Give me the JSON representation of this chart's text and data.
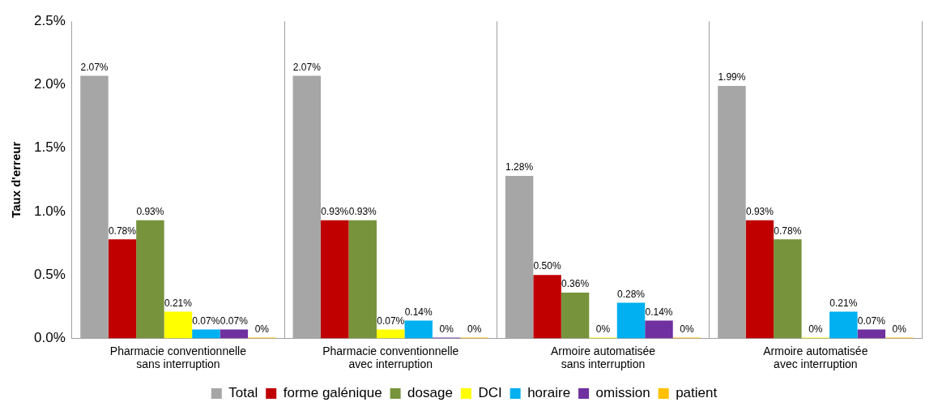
{
  "chart_data": {
    "type": "bar",
    "ylabel": "Taux d'erreur",
    "categories": [
      "Pharmacie conventionnelle\nsans interruption",
      "Pharmacie conventionnelle\navec interruption",
      "Armoire automatisée\nsans interruption",
      "Armoire automatisée\navec interruption"
    ],
    "series": [
      {
        "name": "Total",
        "color": "#a6a6a6",
        "values": [
          2.07,
          2.07,
          1.28,
          1.99
        ],
        "value_labels": [
          "2.07%",
          "2.07%",
          "1.28%",
          "1.99%"
        ]
      },
      {
        "name": "forme galénique",
        "color": "#c00000",
        "values": [
          0.78,
          0.93,
          0.5,
          0.93
        ],
        "value_labels": [
          "0.78%",
          "0.93%",
          "0.50%",
          "0.93%"
        ]
      },
      {
        "name": "dosage",
        "color": "#77933c",
        "values": [
          0.93,
          0.93,
          0.36,
          0.78
        ],
        "value_labels": [
          "0.93%",
          "0.93%",
          "0.36%",
          "0.78%"
        ]
      },
      {
        "name": "DCI",
        "color": "#ffff00",
        "values": [
          0.21,
          0.07,
          0,
          0
        ],
        "value_labels": [
          "0.21%",
          "0.07%",
          "0%",
          "0%"
        ]
      },
      {
        "name": "horaire",
        "color": "#00b0f0",
        "values": [
          0.07,
          0.14,
          0.28,
          0.21
        ],
        "value_labels": [
          "0.07%",
          "0.14%",
          "0.28%",
          "0.21%"
        ]
      },
      {
        "name": "omission",
        "color": "#7030a0",
        "values": [
          0.07,
          0,
          0.14,
          0.07
        ],
        "value_labels": [
          "0.07%",
          "0%",
          "0.14%",
          "0.07%"
        ]
      },
      {
        "name": "patient",
        "color": "#ffc000",
        "values": [
          0,
          0,
          0,
          0
        ],
        "value_labels": [
          "0%",
          "0%",
          "0%",
          "0%"
        ]
      }
    ],
    "ylim": [
      0,
      2.5
    ],
    "yticks": [
      {
        "value": 0,
        "label": "0.0%"
      },
      {
        "value": 0.5,
        "label": "0.5%"
      },
      {
        "value": 1,
        "label": "1.0%"
      },
      {
        "value": 1.5,
        "label": "1.5%"
      },
      {
        "value": 2,
        "label": "2.0%"
      },
      {
        "value": 2.5,
        "label": "2.5%"
      }
    ],
    "grid": "x",
    "legend": "bottom"
  }
}
